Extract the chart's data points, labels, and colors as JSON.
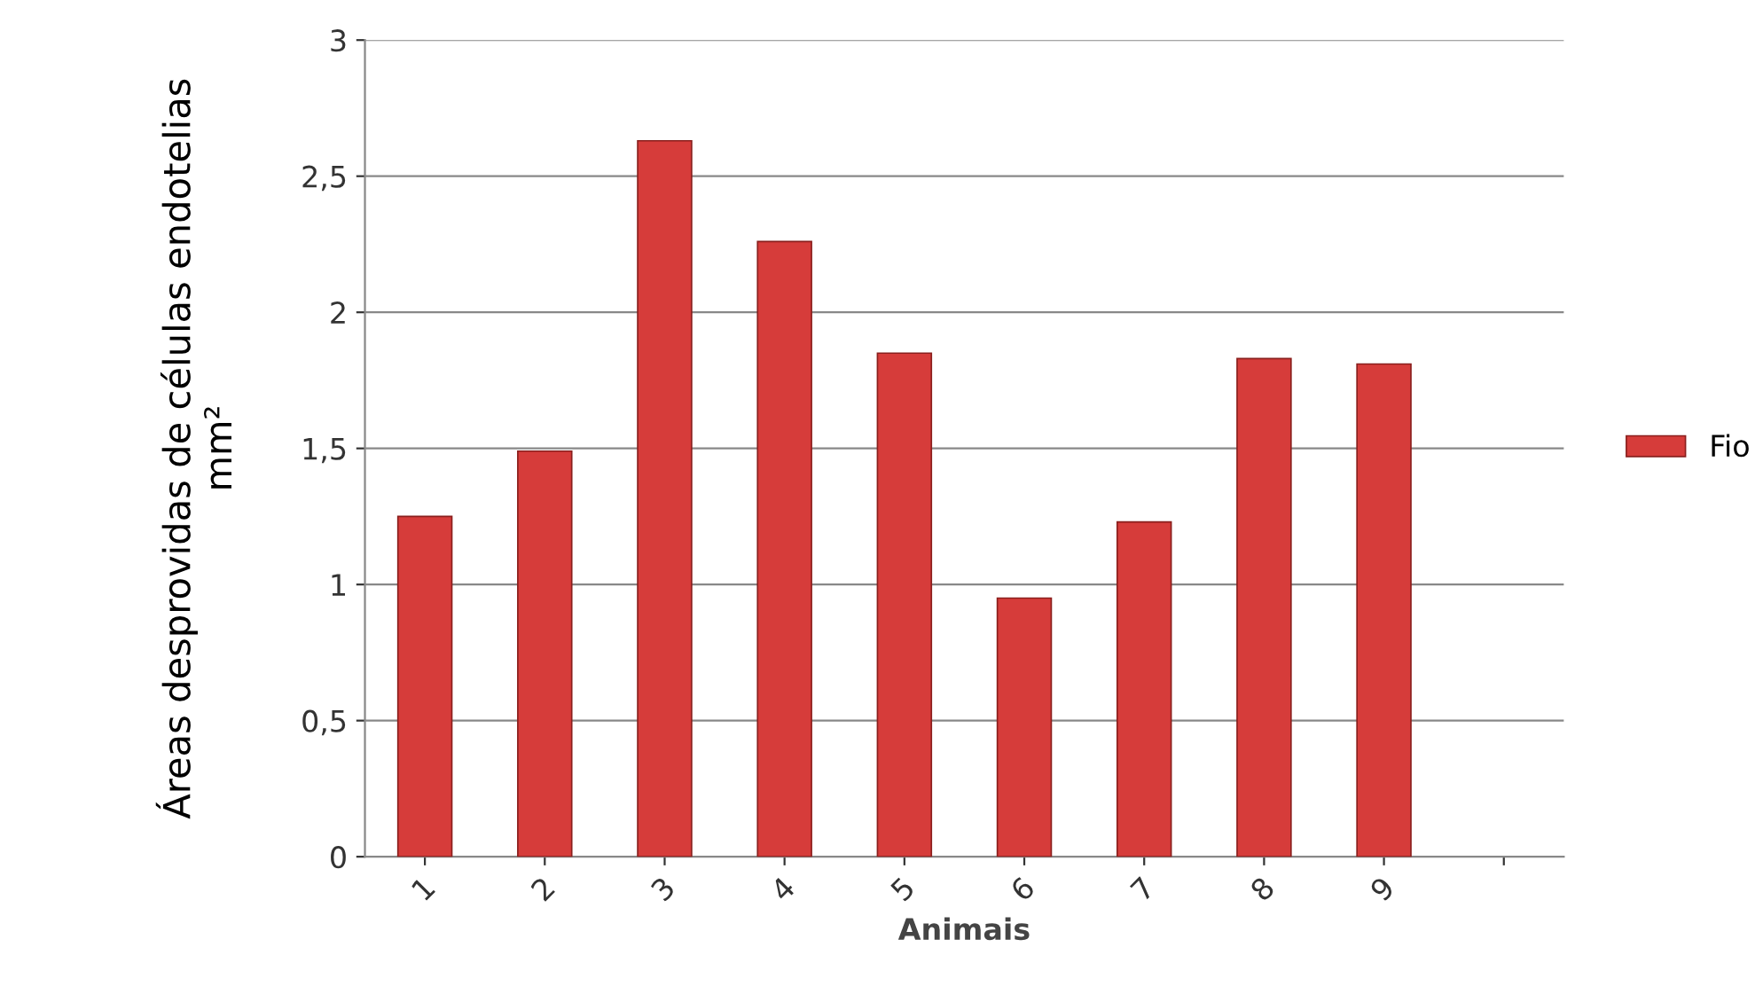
{
  "chart_data": {
    "type": "bar",
    "xlabel": "Animais",
    "ylabel": "Áreas desprovidas de células endotelias\nmm²",
    "categories": [
      "1",
      "2",
      "3",
      "4",
      "5",
      "6",
      "7",
      "8",
      "9",
      null
    ],
    "series": [
      {
        "name": "Fio",
        "color": "#d63c3a",
        "values": [
          1.25,
          1.49,
          2.63,
          2.26,
          1.85,
          0.95,
          1.23,
          1.83,
          1.81,
          null
        ]
      }
    ],
    "ylim": [
      0,
      3
    ],
    "yticks": [
      0,
      {
        "value": 0.5,
        "label": "0,5"
      },
      1,
      {
        "value": 1.5,
        "label": "1,5"
      },
      2,
      {
        "value": 2.5,
        "label": "2,5"
      },
      3
    ],
    "grid": "y",
    "legend": "right"
  }
}
